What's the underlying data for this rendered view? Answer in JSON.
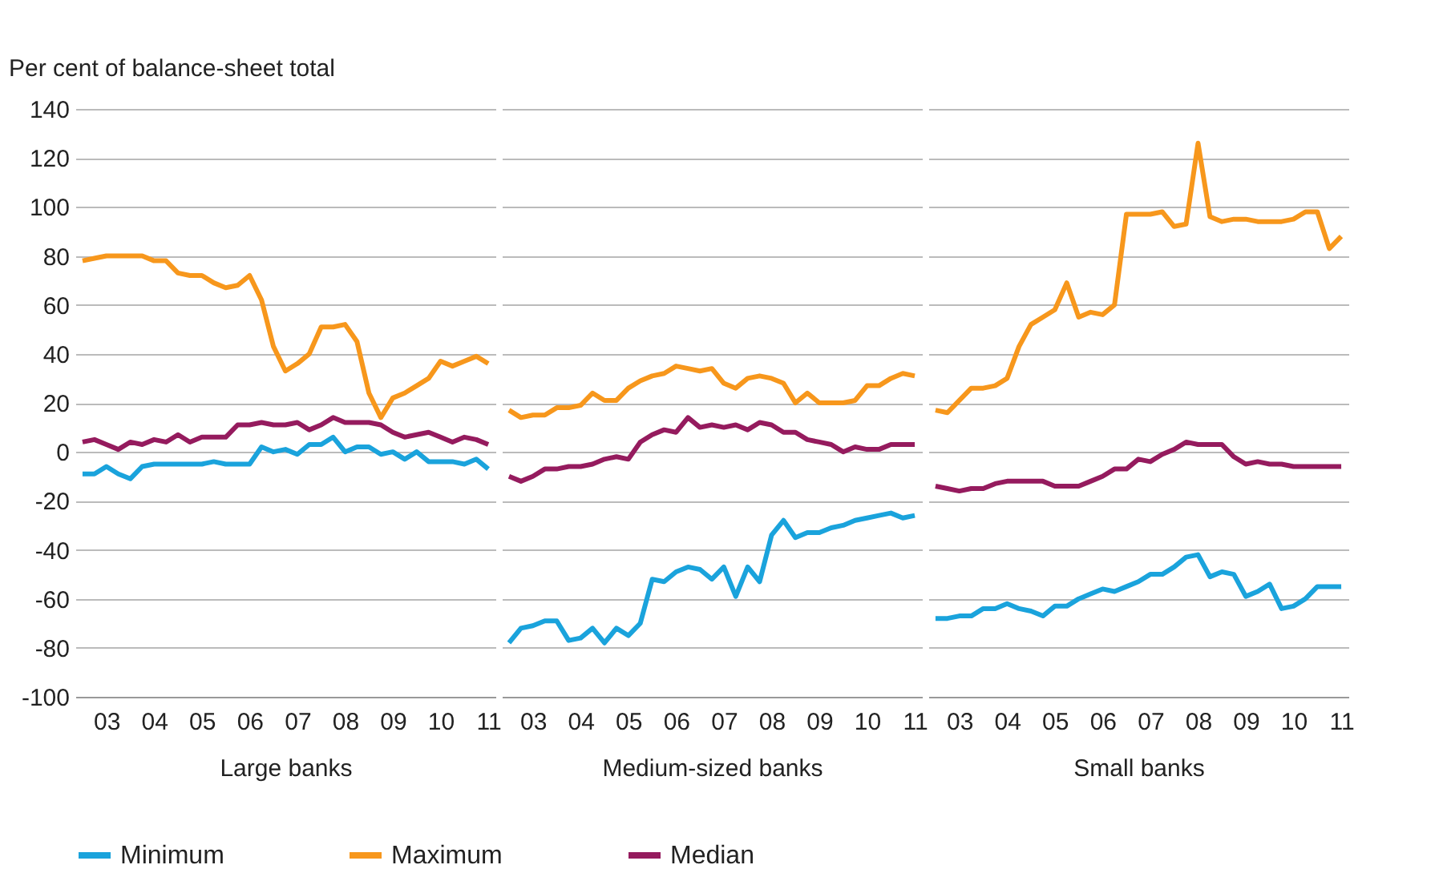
{
  "chart_data": [
    {
      "type": "line",
      "xlabel": "Large banks",
      "ylabel": "Per cent of balance-sheet total",
      "categories": [
        null,
        null,
        "03",
        null,
        null,
        null,
        "04",
        null,
        null,
        null,
        "05",
        null,
        null,
        null,
        "06",
        null,
        null,
        null,
        "07",
        null,
        null,
        null,
        "08",
        null,
        null,
        null,
        "09",
        null,
        null,
        null,
        "10",
        null,
        null,
        null,
        "11"
      ],
      "ylim": [
        -100,
        140
      ],
      "yticks": [
        -100,
        -80,
        -60,
        -40,
        -20,
        0,
        20,
        40,
        60,
        80,
        100,
        120,
        140
      ],
      "grid": "y",
      "legend": "bottom",
      "series": [
        {
          "name": "Minimum",
          "color": "#1aa3dc",
          "values": [
            -9,
            -9,
            -6,
            -9,
            -11,
            -6,
            -5,
            -5,
            -5,
            -5,
            -5,
            -4,
            -5,
            -5,
            -5,
            2,
            0,
            1,
            -1,
            3,
            3,
            6,
            0,
            2,
            2,
            -1,
            0,
            -3,
            0,
            -4,
            -4,
            -4,
            -5,
            -3,
            -7
          ]
        },
        {
          "name": "Maximum",
          "color": "#f7971c",
          "values": [
            78,
            79,
            80,
            80,
            80,
            80,
            78,
            78,
            73,
            72,
            72,
            69,
            67,
            68,
            72,
            62,
            43,
            33,
            36,
            40,
            51,
            51,
            52,
            45,
            24,
            14,
            22,
            24,
            27,
            30,
            37,
            35,
            37,
            39,
            36
          ]
        },
        {
          "name": "Median",
          "color": "#951b5e",
          "values": [
            4,
            5,
            3,
            1,
            4,
            3,
            5,
            4,
            7,
            4,
            6,
            6,
            6,
            11,
            11,
            12,
            11,
            11,
            12,
            9,
            11,
            14,
            12,
            12,
            12,
            11,
            8,
            6,
            7,
            8,
            6,
            4,
            6,
            5,
            3
          ]
        }
      ]
    },
    {
      "type": "line",
      "xlabel": "Medium-sized banks",
      "categories": [
        null,
        null,
        "03",
        null,
        null,
        null,
        "04",
        null,
        null,
        null,
        "05",
        null,
        null,
        null,
        "06",
        null,
        null,
        null,
        "07",
        null,
        null,
        null,
        "08",
        null,
        null,
        null,
        "09",
        null,
        null,
        null,
        "10",
        null,
        null,
        null,
        "11"
      ],
      "ylim": [
        -100,
        140
      ],
      "yticks": [
        -100,
        -80,
        -60,
        -40,
        -20,
        0,
        20,
        40,
        60,
        80,
        100,
        120,
        140
      ],
      "grid": "y",
      "tick_labels": "x",
      "series": [
        {
          "name": "Minimum",
          "color": "#1aa3dc",
          "values": [
            -78,
            -72,
            -71,
            -69,
            -69,
            -77,
            -76,
            -72,
            -78,
            -72,
            -75,
            -70,
            -52,
            -53,
            -49,
            -47,
            -48,
            -52,
            -47,
            -59,
            -47,
            -53,
            -34,
            -28,
            -35,
            -33,
            -33,
            -31,
            -30,
            -28,
            -27,
            -26,
            -25,
            -27,
            -26
          ]
        },
        {
          "name": "Maximum",
          "color": "#f7971c",
          "values": [
            17,
            14,
            15,
            15,
            18,
            18,
            19,
            24,
            21,
            21,
            26,
            29,
            31,
            32,
            35,
            34,
            33,
            34,
            28,
            26,
            30,
            31,
            30,
            28,
            20,
            24,
            20,
            20,
            20,
            21,
            27,
            27,
            30,
            32,
            31
          ]
        },
        {
          "name": "Median",
          "color": "#951b5e",
          "values": [
            -10,
            -12,
            -10,
            -7,
            -7,
            -6,
            -6,
            -5,
            -3,
            -2,
            -3,
            4,
            7,
            9,
            8,
            14,
            10,
            11,
            10,
            11,
            9,
            12,
            11,
            8,
            8,
            5,
            4,
            3,
            0,
            2,
            1,
            1,
            3,
            3,
            3
          ]
        }
      ]
    },
    {
      "type": "line",
      "xlabel": "Small banks",
      "categories": [
        null,
        null,
        "03",
        null,
        null,
        null,
        "04",
        null,
        null,
        null,
        "05",
        null,
        null,
        null,
        "06",
        null,
        null,
        null,
        "07",
        null,
        null,
        null,
        "08",
        null,
        null,
        null,
        "09",
        null,
        null,
        null,
        "10",
        null,
        null,
        null,
        "11"
      ],
      "ylim": [
        -100,
        140
      ],
      "yticks": [
        -100,
        -80,
        -60,
        -40,
        -20,
        0,
        20,
        40,
        60,
        80,
        100,
        120,
        140
      ],
      "grid": "y",
      "tick_labels": "x",
      "series": [
        {
          "name": "Minimum",
          "color": "#1aa3dc",
          "values": [
            -68,
            -68,
            -67,
            -67,
            -64,
            -64,
            -62,
            -64,
            -65,
            -67,
            -63,
            -63,
            -60,
            -58,
            -56,
            -57,
            -55,
            -53,
            -50,
            -50,
            -47,
            -43,
            -42,
            -51,
            -49,
            -50,
            -59,
            -57,
            -54,
            -64,
            -63,
            -60,
            -55,
            -55,
            -55
          ]
        },
        {
          "name": "Maximum",
          "color": "#f7971c",
          "values": [
            17,
            16,
            21,
            26,
            26,
            27,
            30,
            43,
            52,
            55,
            58,
            69,
            55,
            57,
            56,
            60,
            97,
            97,
            97,
            98,
            92,
            93,
            126,
            96,
            94,
            95,
            95,
            94,
            94,
            94,
            95,
            98,
            98,
            83,
            88
          ]
        },
        {
          "name": "Median",
          "color": "#951b5e",
          "values": [
            -14,
            -15,
            -16,
            -15,
            -15,
            -13,
            -12,
            -12,
            -12,
            -12,
            -14,
            -14,
            -14,
            -12,
            -10,
            -7,
            -7,
            -3,
            -4,
            -1,
            1,
            4,
            3,
            3,
            3,
            -2,
            -5,
            -4,
            -5,
            -5,
            -6,
            -6,
            -6,
            -6,
            -6
          ]
        }
      ]
    }
  ]
}
